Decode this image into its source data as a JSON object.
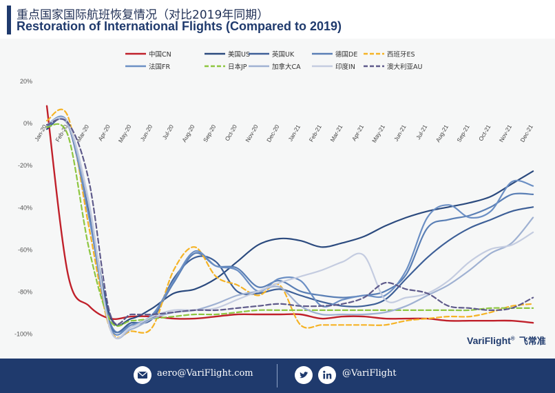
{
  "header": {
    "title_cn": "重点国家国际航班恢复情况（对比2019年同期）",
    "title_en": "Restoration of International Flights (Compared to 2019)"
  },
  "brand": {
    "name": "VariFlight",
    "mark": "®",
    "name_cn": "飞常准"
  },
  "footer": {
    "email": "aero@VariFlight.com",
    "handle": "@VariFlight",
    "icons": [
      "mail-icon",
      "twitter-icon",
      "linkedin-icon"
    ]
  },
  "chart_data": {
    "type": "line",
    "x": [
      "Jan-20",
      "Feb-20",
      "Mar-20",
      "Apr-20",
      "May-20",
      "Jun-20",
      "Jul-20",
      "Aug-20",
      "Sep-20",
      "Oct-20",
      "Nov-20",
      "Dec-20",
      "Jan-21",
      "Feb-21",
      "Mar-21",
      "Apr-21",
      "May-21",
      "Jun-21",
      "Jul-21",
      "Aug-21",
      "Sep-21",
      "Oct-21",
      "Nov-21",
      "Dec-21"
    ],
    "ylim": [
      -100,
      20
    ],
    "yticks": [
      20,
      0,
      -20,
      -40,
      -60,
      -80,
      -100
    ],
    "ytick_labels": [
      "20%",
      "0%",
      "-20%",
      "-40%",
      "-60%",
      "-80%",
      "-100%"
    ],
    "legend_position": "top",
    "grid": false,
    "series": [
      {
        "name": "中国CN",
        "color": "#c0202a",
        "dash": false,
        "values": [
          8,
          -72,
          -87,
          -93,
          -92,
          -92,
          -93,
          -93,
          -92,
          -91,
          -91,
          -91,
          -91,
          -93,
          -92,
          -92,
          -93,
          -93,
          -93,
          -94,
          -94,
          -94,
          -94,
          -95
        ]
      },
      {
        "name": "美国US",
        "color": "#2b4a7e",
        "dash": false,
        "values": [
          -3,
          0,
          -42,
          -92,
          -93,
          -88,
          -81,
          -79,
          -74,
          -66,
          -58,
          -55,
          -56,
          -59,
          -57,
          -54,
          -49,
          -45,
          -42,
          -40,
          -38,
          -35,
          -29,
          -23
        ]
      },
      {
        "name": "英国UK",
        "color": "#3d5f97",
        "dash": false,
        "values": [
          -2,
          -1,
          -45,
          -96,
          -95,
          -93,
          -74,
          -64,
          -66,
          -80,
          -81,
          -79,
          -82,
          -85,
          -87,
          -87,
          -84,
          -74,
          -64,
          -56,
          -50,
          -46,
          -42,
          -40
        ]
      },
      {
        "name": "德国DE",
        "color": "#5a7fb5",
        "dash": false,
        "values": [
          -2,
          0,
          -40,
          -95,
          -96,
          -92,
          -76,
          -62,
          -68,
          -69,
          -78,
          -75,
          -80,
          -82,
          -83,
          -82,
          -80,
          -72,
          -50,
          -46,
          -44,
          -40,
          -34,
          -34
        ]
      },
      {
        "name": "西班牙ES",
        "color": "#f5b325",
        "dash": true,
        "values": [
          1,
          3,
          -50,
          -98,
          -99,
          -97,
          -70,
          -59,
          -73,
          -77,
          -82,
          -77,
          -96,
          -96,
          -96,
          -96,
          -96,
          -94,
          -93,
          -92,
          -92,
          -90,
          -87,
          -86
        ]
      },
      {
        "name": "法国FR",
        "color": "#6b8fc4",
        "dash": false,
        "values": [
          -1,
          0,
          -45,
          -97,
          -96,
          -91,
          -75,
          -61,
          -68,
          -70,
          -80,
          -74,
          -75,
          -87,
          -84,
          -82,
          -82,
          -70,
          -45,
          -39,
          -45,
          -42,
          -28,
          -30
        ]
      },
      {
        "name": "日本JP",
        "color": "#8dc63f",
        "dash": true,
        "values": [
          -2,
          -6,
          -60,
          -94,
          -94,
          -93,
          -92,
          -91,
          -91,
          -90,
          -89,
          -89,
          -89,
          -89,
          -89,
          -89,
          -89,
          -89,
          -89,
          -89,
          -89,
          -88,
          -88,
          -88
        ]
      },
      {
        "name": "加拿大CA",
        "color": "#9fb1d2",
        "dash": false,
        "values": [
          -1,
          -1,
          -40,
          -98,
          -98,
          -93,
          -90,
          -89,
          -86,
          -82,
          -80,
          -78,
          -87,
          -91,
          -91,
          -91,
          -90,
          -87,
          -82,
          -77,
          -70,
          -62,
          -57,
          -45
        ]
      },
      {
        "name": "印度IN",
        "color": "#c4cce0",
        "dash": false,
        "values": [
          -1,
          0,
          -38,
          -98,
          -97,
          -92,
          -89,
          -89,
          -88,
          -84,
          -80,
          -76,
          -73,
          -70,
          -66,
          -63,
          -84,
          -83,
          -81,
          -75,
          -66,
          -60,
          -58,
          -52
        ]
      },
      {
        "name": "澳大利亚AU",
        "color": "#5e5a8a",
        "dash": true,
        "values": [
          -1,
          0,
          -28,
          -91,
          -91,
          -91,
          -90,
          -89,
          -89,
          -88,
          -87,
          -86,
          -87,
          -87,
          -86,
          -83,
          -76,
          -79,
          -81,
          -87,
          -88,
          -89,
          -88,
          -83
        ]
      }
    ]
  }
}
